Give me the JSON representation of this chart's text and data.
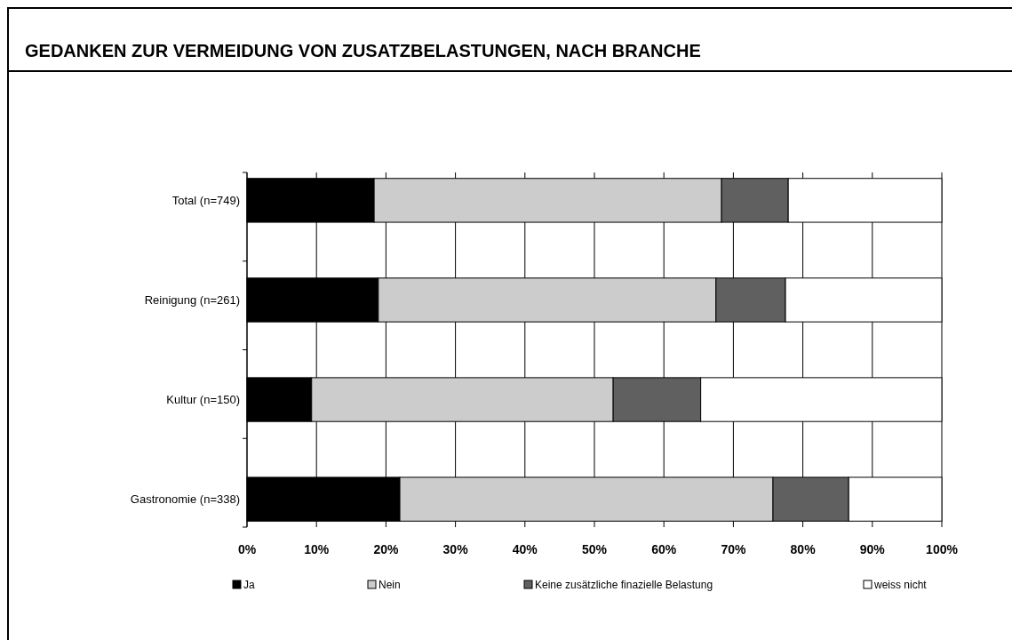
{
  "chart_data": {
    "type": "bar",
    "title": "GEDANKEN ZUR VERMEIDUNG VON ZUSATZBELASTUNGEN, NACH BRANCHE",
    "orientation": "horizontal",
    "stacked": true,
    "categories": [
      "Total (n=749)",
      "Reinigung (n=261)",
      "Kultur (n=150)",
      "Gastronomie (n=338)"
    ],
    "series": [
      {
        "name": "Ja",
        "color": "#000000",
        "values": [
          18.3,
          18.9,
          9.3,
          22.0
        ]
      },
      {
        "name": "Nein",
        "color": "#cccccc",
        "values": [
          50.0,
          48.6,
          43.4,
          53.7
        ]
      },
      {
        "name": "Keine zusätzliche finazielle Belastung",
        "color": "#606060",
        "values": [
          9.6,
          10.0,
          12.6,
          10.9
        ]
      },
      {
        "name": "weiss nicht",
        "color": "#ffffff",
        "values": [
          22.1,
          22.5,
          34.7,
          13.4
        ]
      }
    ],
    "xlim": [
      0,
      100
    ],
    "xticks": [
      {
        "value": 0,
        "label": "0%"
      },
      {
        "value": 10,
        "label": "10%"
      },
      {
        "value": 20,
        "label": "20%"
      },
      {
        "value": 30,
        "label": "30%"
      },
      {
        "value": 40,
        "label": "40%"
      },
      {
        "value": 50,
        "label": "50%"
      },
      {
        "value": 60,
        "label": "60%"
      },
      {
        "value": 70,
        "label": "70%"
      },
      {
        "value": 80,
        "label": "80%"
      },
      {
        "value": 90,
        "label": "90%"
      },
      {
        "value": 100,
        "label": "100%"
      }
    ],
    "grid": "x",
    "legend": "bottom"
  }
}
